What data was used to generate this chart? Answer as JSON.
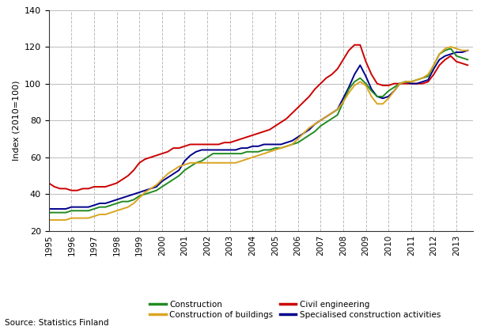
{
  "title": "",
  "ylabel": "Index (2010=100)",
  "xlabel": "",
  "source": "Source: Statistics Finland",
  "ylim": [
    20,
    140
  ],
  "yticks": [
    20,
    40,
    60,
    80,
    100,
    120,
    140
  ],
  "x_years": [
    1995.0,
    1995.25,
    1995.5,
    1995.75,
    1996.0,
    1996.25,
    1996.5,
    1996.75,
    1997.0,
    1997.25,
    1997.5,
    1997.75,
    1998.0,
    1998.25,
    1998.5,
    1998.75,
    1999.0,
    1999.25,
    1999.5,
    1999.75,
    2000.0,
    2000.25,
    2000.5,
    2000.75,
    2001.0,
    2001.25,
    2001.5,
    2001.75,
    2002.0,
    2002.25,
    2002.5,
    2002.75,
    2003.0,
    2003.25,
    2003.5,
    2003.75,
    2004.0,
    2004.25,
    2004.5,
    2004.75,
    2005.0,
    2005.25,
    2005.5,
    2005.75,
    2006.0,
    2006.25,
    2006.5,
    2006.75,
    2007.0,
    2007.25,
    2007.5,
    2007.75,
    2008.0,
    2008.25,
    2008.5,
    2008.75,
    2009.0,
    2009.25,
    2009.5,
    2009.75,
    2010.0,
    2010.25,
    2010.5,
    2010.75,
    2011.0,
    2011.25,
    2011.5,
    2011.75,
    2012.0,
    2012.25,
    2012.5,
    2012.75,
    2013.0,
    2013.25,
    2013.5
  ],
  "construction": [
    30,
    30,
    30,
    30,
    31,
    31,
    31,
    31,
    32,
    33,
    33,
    34,
    35,
    36,
    36,
    37,
    39,
    40,
    41,
    42,
    44,
    46,
    48,
    50,
    53,
    55,
    57,
    58,
    60,
    62,
    62,
    62,
    62,
    62,
    62,
    63,
    63,
    63,
    64,
    64,
    65,
    65,
    66,
    67,
    68,
    70,
    72,
    74,
    77,
    79,
    81,
    83,
    90,
    97,
    101,
    103,
    100,
    96,
    93,
    93,
    96,
    98,
    100,
    101,
    101,
    102,
    103,
    104,
    110,
    116,
    118,
    119,
    115,
    114,
    113
  ],
  "civil_engineering": [
    46,
    44,
    43,
    43,
    42,
    42,
    43,
    43,
    44,
    44,
    44,
    45,
    46,
    48,
    50,
    53,
    57,
    59,
    60,
    61,
    62,
    63,
    65,
    65,
    66,
    67,
    67,
    67,
    67,
    67,
    67,
    68,
    68,
    69,
    70,
    71,
    72,
    73,
    74,
    75,
    77,
    79,
    81,
    84,
    87,
    90,
    93,
    97,
    100,
    103,
    105,
    108,
    113,
    118,
    121,
    121,
    112,
    105,
    100,
    99,
    99,
    100,
    100,
    100,
    100,
    100,
    100,
    101,
    105,
    110,
    113,
    115,
    112,
    111,
    110
  ],
  "construction_of_buildings": [
    26,
    26,
    26,
    26,
    27,
    27,
    27,
    27,
    28,
    29,
    29,
    30,
    31,
    32,
    33,
    35,
    38,
    41,
    43,
    45,
    48,
    51,
    53,
    55,
    56,
    57,
    57,
    57,
    57,
    57,
    57,
    57,
    57,
    57,
    58,
    59,
    60,
    61,
    62,
    63,
    64,
    65,
    66,
    67,
    70,
    73,
    76,
    78,
    80,
    82,
    84,
    86,
    90,
    95,
    99,
    101,
    99,
    93,
    89,
    89,
    92,
    96,
    100,
    101,
    101,
    102,
    103,
    105,
    110,
    116,
    119,
    120,
    119,
    118,
    118
  ],
  "specialised": [
    32,
    32,
    32,
    32,
    33,
    33,
    33,
    33,
    34,
    35,
    35,
    36,
    37,
    38,
    39,
    40,
    41,
    42,
    43,
    44,
    47,
    49,
    51,
    53,
    58,
    61,
    63,
    64,
    64,
    64,
    64,
    64,
    64,
    64,
    65,
    65,
    66,
    66,
    67,
    67,
    67,
    67,
    68,
    69,
    71,
    73,
    75,
    78,
    80,
    82,
    84,
    86,
    92,
    98,
    105,
    110,
    104,
    97,
    93,
    92,
    93,
    96,
    100,
    101,
    100,
    100,
    101,
    102,
    108,
    113,
    115,
    116,
    117,
    117,
    118
  ],
  "colors": {
    "construction": "#228B22",
    "civil_engineering": "#CC0000",
    "construction_of_buildings": "#DAA520",
    "specialised": "#00008B"
  },
  "legend_labels": {
    "construction": "Construction",
    "civil_engineering": "Civil engineering",
    "construction_of_buildings": "Construction of buildings",
    "specialised": "Specialised construction activities"
  },
  "background_color": "#ffffff",
  "grid_color": "#bbbbbb"
}
